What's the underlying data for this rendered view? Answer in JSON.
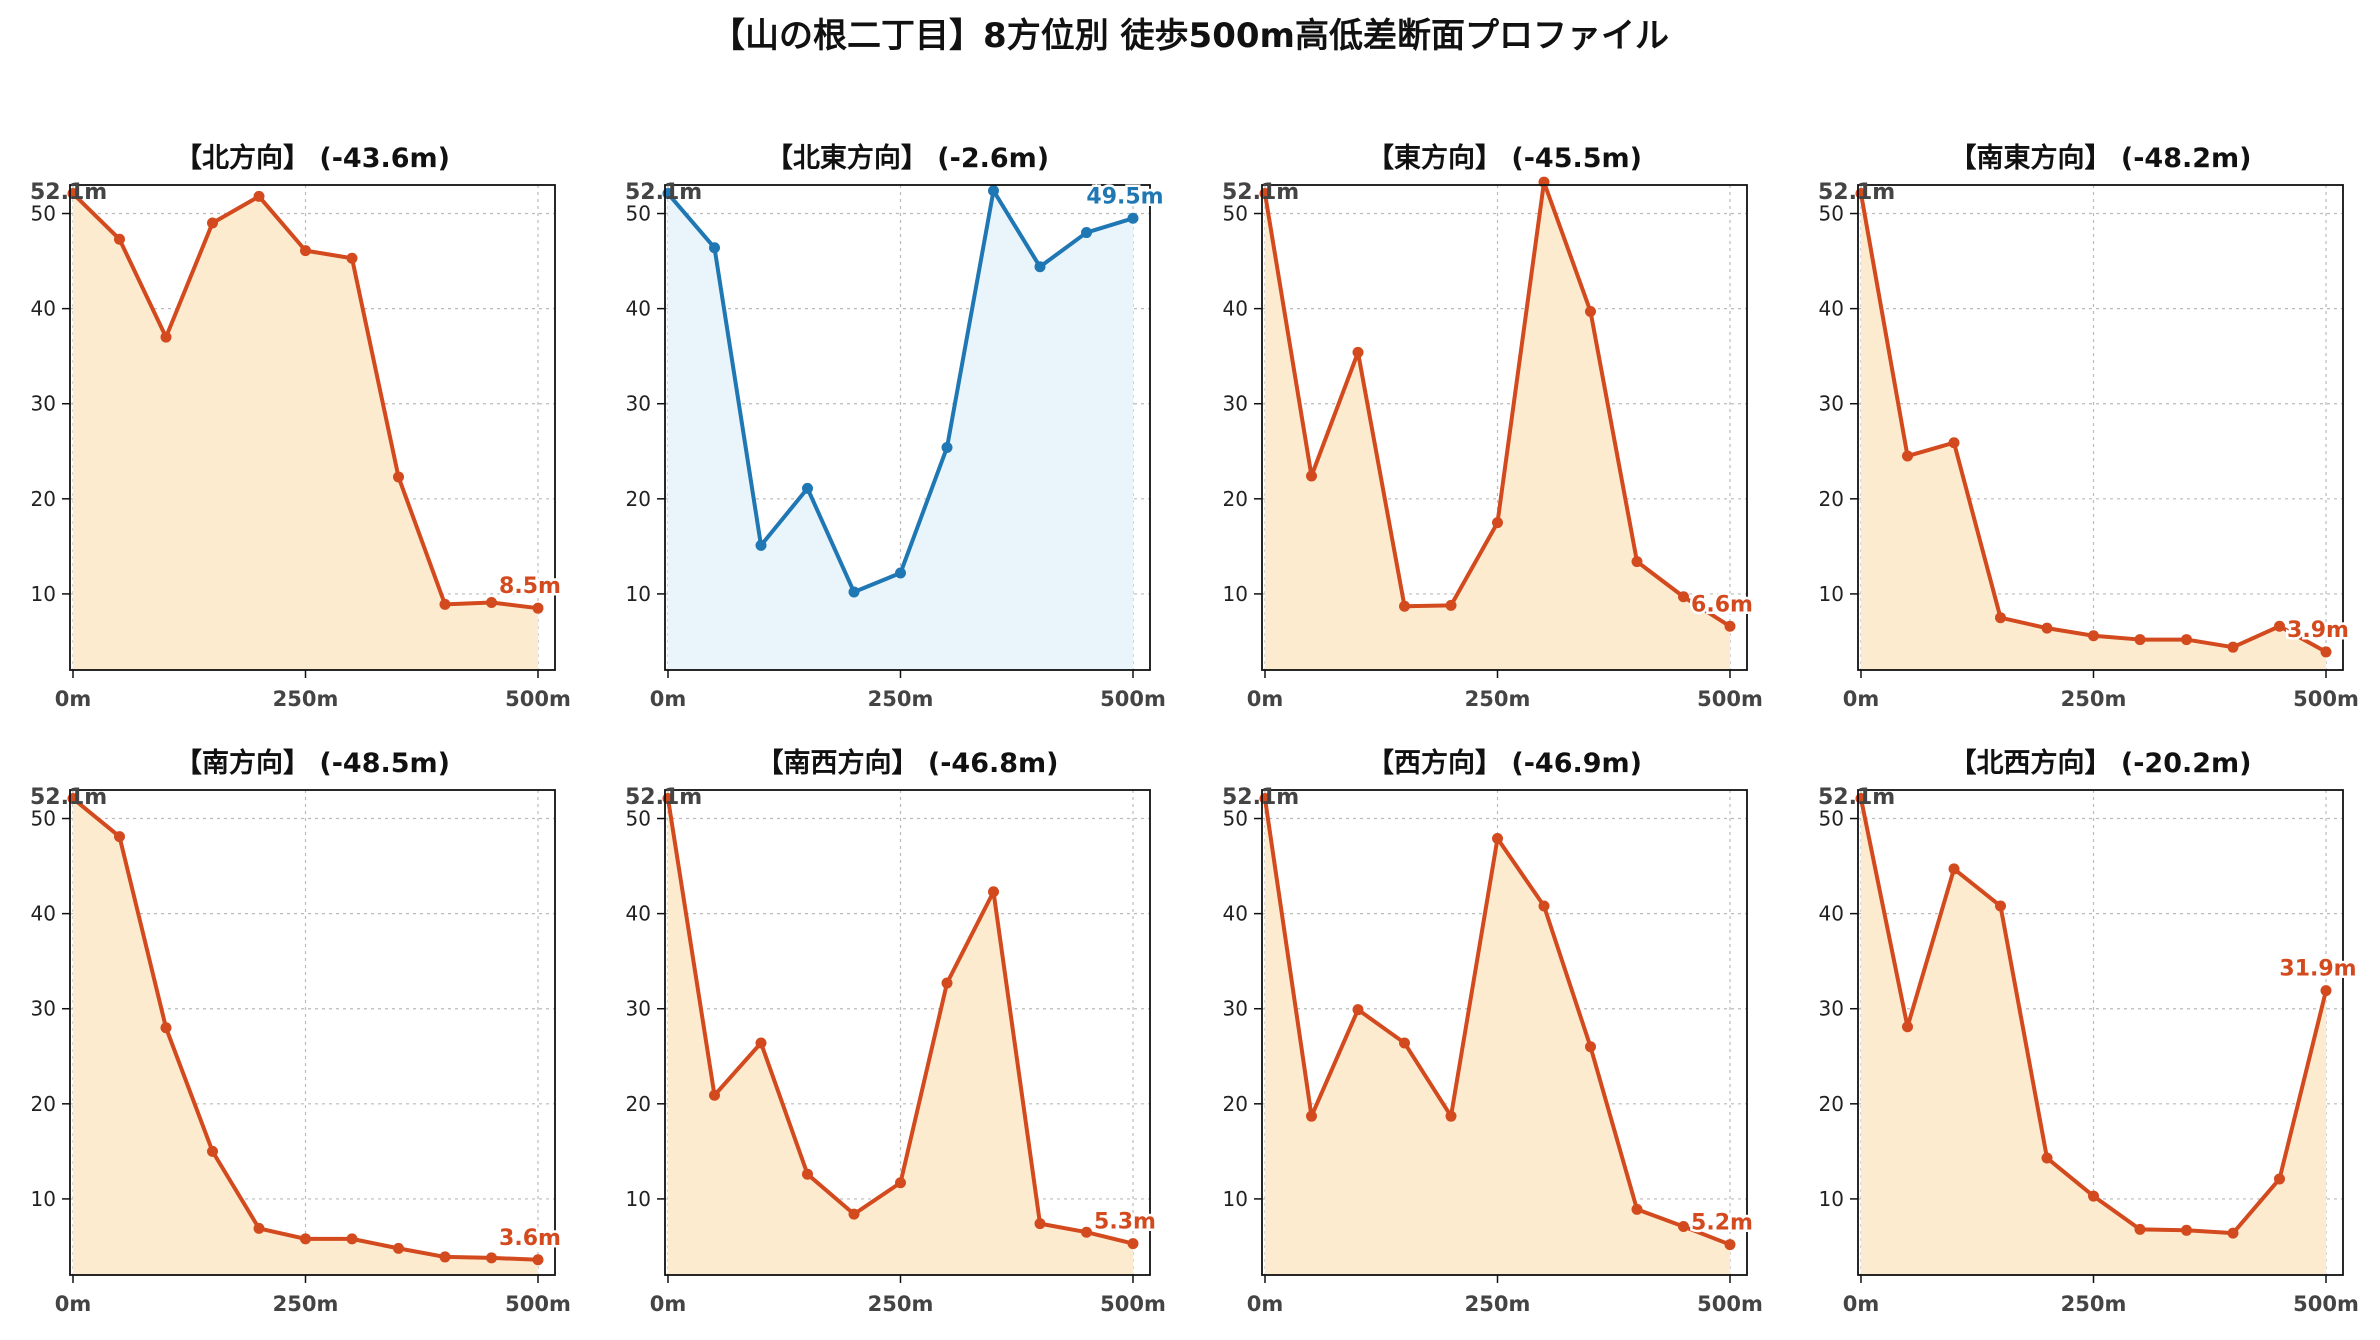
{
  "figure": {
    "title": "【山の根二丁目】8方位別 徒歩500m高低差断面プロファイル"
  },
  "colors": {
    "drop_line": "#d24a1e",
    "drop_fill": "#fdebd0",
    "flat_line": "#1f77b4",
    "flat_fill": "#eaf5fb",
    "axis_text": "#444444",
    "grid": "#bbbbbb"
  },
  "chart_data": [
    {
      "type": "area",
      "title": "【北方向】 (-43.6m)",
      "start_label": "52.1m",
      "end_label": "8.5m",
      "style": "drop",
      "x": [
        0,
        50,
        100,
        150,
        200,
        250,
        300,
        350,
        400,
        450,
        500
      ],
      "y": [
        52.1,
        47.3,
        37.0,
        49.0,
        51.8,
        46.1,
        45.3,
        22.3,
        8.9,
        9.1,
        8.5
      ],
      "xticks": [
        "0m",
        "250m",
        "500m"
      ],
      "yticks": [
        10,
        20,
        30,
        40,
        50
      ],
      "xlim": [
        0,
        500
      ],
      "ylim": [
        2,
        53
      ],
      "grid": true
    },
    {
      "type": "area",
      "title": "【北東方向】 (-2.6m)",
      "start_label": "52.1m",
      "end_label": "49.5m",
      "style": "flat",
      "x": [
        0,
        50,
        100,
        150,
        200,
        250,
        300,
        350,
        400,
        450,
        500
      ],
      "y": [
        52.1,
        46.4,
        15.1,
        21.1,
        10.2,
        12.2,
        25.4,
        52.4,
        44.4,
        48.0,
        49.5
      ],
      "xticks": [
        "0m",
        "250m",
        "500m"
      ],
      "yticks": [
        10,
        20,
        30,
        40,
        50
      ],
      "xlim": [
        0,
        500
      ],
      "ylim": [
        2,
        53
      ],
      "grid": true
    },
    {
      "type": "area",
      "title": "【東方向】 (-45.5m)",
      "start_label": "52.1m",
      "end_label": "6.6m",
      "style": "drop",
      "x": [
        0,
        50,
        100,
        150,
        200,
        250,
        300,
        350,
        400,
        450,
        500
      ],
      "y": [
        52.1,
        22.4,
        35.4,
        8.7,
        8.8,
        17.5,
        53.3,
        39.7,
        13.4,
        9.7,
        6.6
      ],
      "xticks": [
        "0m",
        "250m",
        "500m"
      ],
      "yticks": [
        10,
        20,
        30,
        40,
        50
      ],
      "xlim": [
        0,
        500
      ],
      "ylim": [
        2,
        53
      ],
      "grid": true
    },
    {
      "type": "area",
      "title": "【南東方向】 (-48.2m)",
      "start_label": "52.1m",
      "end_label": "3.9m",
      "style": "drop",
      "x": [
        0,
        50,
        100,
        150,
        200,
        250,
        300,
        350,
        400,
        450,
        500
      ],
      "y": [
        52.1,
        24.5,
        25.9,
        7.5,
        6.4,
        5.6,
        5.2,
        5.2,
        4.4,
        6.6,
        3.9
      ],
      "xticks": [
        "0m",
        "250m",
        "500m"
      ],
      "yticks": [
        10,
        20,
        30,
        40,
        50
      ],
      "xlim": [
        0,
        500
      ],
      "ylim": [
        2,
        53
      ],
      "grid": true
    },
    {
      "type": "area",
      "title": "【南方向】 (-48.5m)",
      "start_label": "52.1m",
      "end_label": "3.6m",
      "style": "drop",
      "x": [
        0,
        50,
        100,
        150,
        200,
        250,
        300,
        350,
        400,
        450,
        500
      ],
      "y": [
        52.1,
        48.1,
        28.0,
        15.0,
        6.9,
        5.8,
        5.8,
        4.8,
        3.9,
        3.8,
        3.6
      ],
      "xticks": [
        "0m",
        "250m",
        "500m"
      ],
      "yticks": [
        10,
        20,
        30,
        40,
        50
      ],
      "xlim": [
        0,
        500
      ],
      "ylim": [
        2,
        53
      ],
      "grid": true
    },
    {
      "type": "area",
      "title": "【南西方向】 (-46.8m)",
      "start_label": "52.1m",
      "end_label": "5.3m",
      "style": "drop",
      "x": [
        0,
        50,
        100,
        150,
        200,
        250,
        300,
        350,
        400,
        450,
        500
      ],
      "y": [
        52.1,
        20.9,
        26.4,
        12.6,
        8.4,
        11.7,
        32.7,
        42.3,
        7.4,
        6.5,
        5.3
      ],
      "xticks": [
        "0m",
        "250m",
        "500m"
      ],
      "yticks": [
        10,
        20,
        30,
        40,
        50
      ],
      "xlim": [
        0,
        500
      ],
      "ylim": [
        2,
        53
      ],
      "grid": true
    },
    {
      "type": "area",
      "title": "【西方向】 (-46.9m)",
      "start_label": "52.1m",
      "end_label": "5.2m",
      "style": "drop",
      "x": [
        0,
        50,
        100,
        150,
        200,
        250,
        300,
        350,
        400,
        450,
        500
      ],
      "y": [
        52.1,
        18.7,
        29.9,
        26.4,
        18.7,
        47.9,
        40.8,
        26.0,
        8.9,
        7.1,
        5.2
      ],
      "xticks": [
        "0m",
        "250m",
        "500m"
      ],
      "yticks": [
        10,
        20,
        30,
        40,
        50
      ],
      "xlim": [
        0,
        500
      ],
      "ylim": [
        2,
        53
      ],
      "grid": true
    },
    {
      "type": "area",
      "title": "【北西方向】 (-20.2m)",
      "start_label": "52.1m",
      "end_label": "31.9m",
      "style": "drop",
      "x": [
        0,
        50,
        100,
        150,
        200,
        250,
        300,
        350,
        400,
        450,
        500
      ],
      "y": [
        52.1,
        28.1,
        44.7,
        40.8,
        14.3,
        10.3,
        6.8,
        6.7,
        6.4,
        12.1,
        31.9
      ],
      "xticks": [
        "0m",
        "250m",
        "500m"
      ],
      "yticks": [
        10,
        20,
        30,
        40,
        50
      ],
      "xlim": [
        0,
        500
      ],
      "ylim": [
        2,
        53
      ],
      "grid": true
    }
  ]
}
